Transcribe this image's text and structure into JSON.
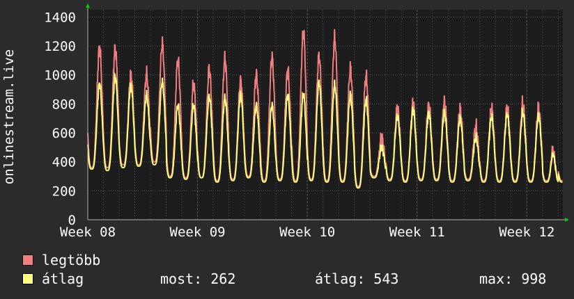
{
  "colors": {
    "background": "#2b2b2b",
    "plot_background": "#1c1c1c",
    "grid": "#5a5a5a",
    "axis": "#b0b0b0",
    "arrow": "#00cc00",
    "max_series": "#f08080",
    "avg_series": "#ffff80"
  },
  "chart_data": {
    "type": "line",
    "ylabel": "onlinestream.live",
    "ylim": [
      0,
      1450
    ],
    "yticks": [
      0,
      200,
      400,
      600,
      800,
      1000,
      1200,
      1400
    ],
    "xticks": [
      {
        "label": "Week 08",
        "day": 0
      },
      {
        "label": "Week 09",
        "day": 7
      },
      {
        "label": "Week 10",
        "day": 14
      },
      {
        "label": "Week 11",
        "day": 21
      },
      {
        "label": "Week 12",
        "day": 28
      }
    ],
    "xlim_days": [
      0,
      30.3
    ],
    "grid": true,
    "legend_position": "bottom-left",
    "daily": [
      {
        "day": 0,
        "avg_peak": 940,
        "avg_low": 350,
        "max_peak": 1190,
        "max_low": 360
      },
      {
        "day": 1,
        "avg_peak": 990,
        "avg_low": 340,
        "max_peak": 1180,
        "max_low": 360
      },
      {
        "day": 2,
        "avg_peak": 930,
        "avg_low": 360,
        "max_peak": 1000,
        "max_low": 380
      },
      {
        "day": 3,
        "avg_peak": 860,
        "avg_low": 370,
        "max_peak": 1000,
        "max_low": 380
      },
      {
        "day": 4,
        "avg_peak": 950,
        "avg_low": 380,
        "max_peak": 1210,
        "max_low": 400
      },
      {
        "day": 5,
        "avg_peak": 790,
        "avg_low": 290,
        "max_peak": 1100,
        "max_low": 300
      },
      {
        "day": 6,
        "avg_peak": 790,
        "avg_low": 280,
        "max_peak": 930,
        "max_low": 290
      },
      {
        "day": 7,
        "avg_peak": 850,
        "avg_low": 290,
        "max_peak": 1040,
        "max_low": 290
      },
      {
        "day": 8,
        "avg_peak": 840,
        "avg_low": 260,
        "max_peak": 1110,
        "max_low": 270
      },
      {
        "day": 9,
        "avg_peak": 870,
        "avg_low": 270,
        "max_peak": 960,
        "max_low": 280
      },
      {
        "day": 10,
        "avg_peak": 790,
        "avg_low": 290,
        "max_peak": 1000,
        "max_low": 300
      },
      {
        "day": 11,
        "avg_peak": 790,
        "avg_low": 260,
        "max_peak": 1120,
        "max_low": 270
      },
      {
        "day": 12,
        "avg_peak": 860,
        "avg_low": 270,
        "max_peak": 1030,
        "max_low": 280
      },
      {
        "day": 13,
        "avg_peak": 870,
        "avg_low": 260,
        "max_peak": 1300,
        "max_low": 270
      },
      {
        "day": 14,
        "avg_peak": 950,
        "avg_low": 270,
        "max_peak": 1130,
        "max_low": 280
      },
      {
        "day": 15,
        "avg_peak": 930,
        "avg_low": 260,
        "max_peak": 1250,
        "max_low": 270
      },
      {
        "day": 16,
        "avg_peak": 860,
        "avg_low": 260,
        "max_peak": 1040,
        "max_low": 270
      },
      {
        "day": 17,
        "avg_peak": 830,
        "avg_low": 220,
        "max_peak": 990,
        "max_low": 230
      },
      {
        "day": 18,
        "avg_peak": 500,
        "avg_low": 290,
        "max_peak": 560,
        "max_low": 300
      },
      {
        "day": 19,
        "avg_peak": 720,
        "avg_low": 270,
        "max_peak": 770,
        "max_low": 280
      },
      {
        "day": 20,
        "avg_peak": 760,
        "avg_low": 260,
        "max_peak": 800,
        "max_low": 270
      },
      {
        "day": 21,
        "avg_peak": 740,
        "avg_low": 270,
        "max_peak": 790,
        "max_low": 280
      },
      {
        "day": 22,
        "avg_peak": 740,
        "avg_low": 270,
        "max_peak": 810,
        "max_low": 280
      },
      {
        "day": 23,
        "avg_peak": 700,
        "avg_low": 260,
        "max_peak": 760,
        "max_low": 270
      },
      {
        "day": 24,
        "avg_peak": 570,
        "avg_low": 270,
        "max_peak": 640,
        "max_low": 280
      },
      {
        "day": 25,
        "avg_peak": 710,
        "avg_low": 260,
        "max_peak": 760,
        "max_low": 270
      },
      {
        "day": 26,
        "avg_peak": 730,
        "avg_low": 260,
        "max_peak": 770,
        "max_low": 270
      },
      {
        "day": 27,
        "avg_peak": 740,
        "avg_low": 260,
        "max_peak": 800,
        "max_low": 270
      },
      {
        "day": 28,
        "avg_peak": 720,
        "avg_low": 260,
        "max_peak": 770,
        "max_low": 270
      },
      {
        "day": 29,
        "avg_peak": 520,
        "avg_low": 260,
        "max_peak": 560,
        "max_low": 270
      }
    ],
    "end_value": 262
  },
  "legend": {
    "max_label": "legtöbb",
    "avg_label": "átlag",
    "most": "most: 262",
    "atlag": "átlag: 543",
    "max": "max: 998"
  }
}
